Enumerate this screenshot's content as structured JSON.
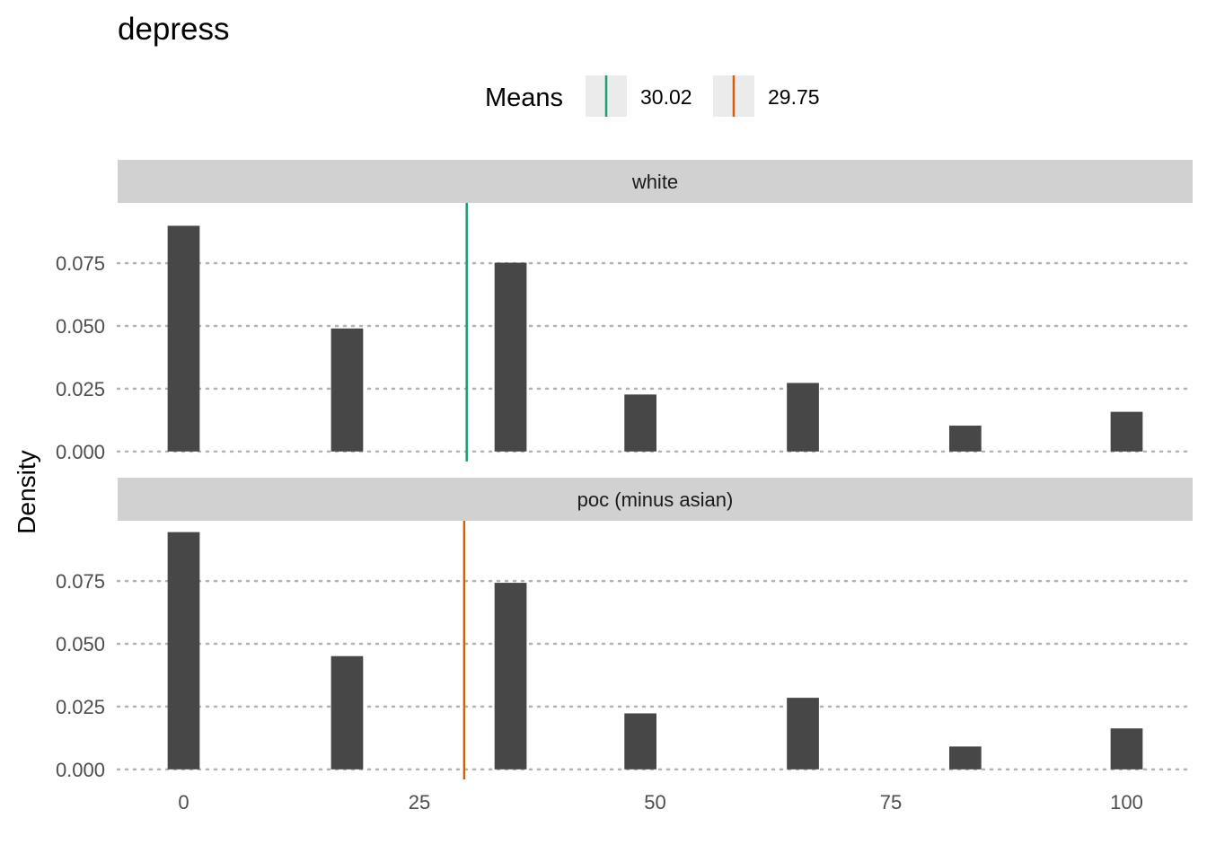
{
  "chart_data": {
    "type": "bar",
    "title": "depress",
    "ylabel": "Density",
    "xlabel": "",
    "xlim": [
      -7,
      107
    ],
    "ylim": [
      -0.004,
      0.099
    ],
    "x_ticks": [
      0,
      25,
      50,
      75,
      100
    ],
    "y_ticks": [
      0,
      0.025,
      0.05,
      0.075
    ],
    "y_tick_labels": [
      "0.000",
      "0.025",
      "0.050",
      "0.075"
    ],
    "bar_width": 3.4,
    "grid": "horizontal dotted",
    "legend": {
      "title": "Means",
      "position": "top",
      "entries": [
        {
          "label": "30.02",
          "color": "#1b9e77"
        },
        {
          "label": "29.75",
          "color": "#d95f02"
        }
      ]
    },
    "bar_color": "#474747",
    "facets": [
      {
        "name": "white",
        "x": [
          0,
          17.33,
          34.67,
          48.44,
          65.67,
          82.89,
          100
        ],
        "values": [
          0.0899,
          0.049,
          0.0752,
          0.0227,
          0.0273,
          0.0103,
          0.0158
        ],
        "mean": 30.02,
        "mean_color": "#1b9e77"
      },
      {
        "name": "poc (minus asian)",
        "x": [
          0,
          17.33,
          34.67,
          48.44,
          65.67,
          82.89,
          100
        ],
        "values": [
          0.0945,
          0.0451,
          0.0743,
          0.0223,
          0.0285,
          0.0091,
          0.0163
        ],
        "mean": 29.75,
        "mean_color": "#d95f02"
      }
    ]
  }
}
